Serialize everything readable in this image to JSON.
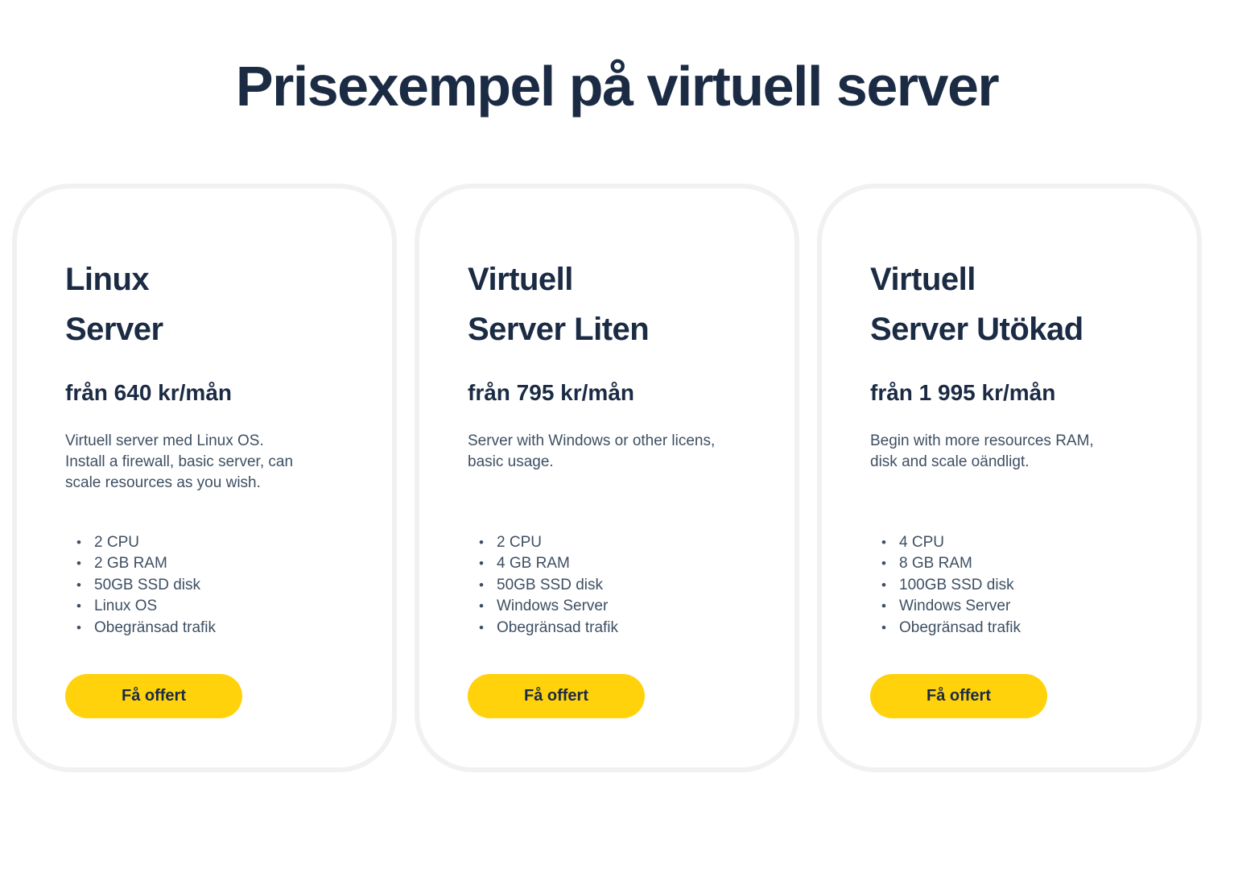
{
  "page": {
    "title": "Prisexempel på virtuell server"
  },
  "colors": {
    "heading": "#1b2b44",
    "body_text": "#3e4f63",
    "button_bg": "#ffd20b",
    "card_border": "#f1f1f2"
  },
  "cards": [
    {
      "name": "Linux\nServer",
      "price": "från 640 kr/mån",
      "description": "Virtuell server med Linux OS.\nInstall a firewall, basic server, can\nscale resources as you wish.",
      "features": [
        "2 CPU",
        "2 GB RAM",
        "50GB SSD disk",
        "Linux OS",
        "Obegränsad trafik"
      ],
      "cta_label": "Få offert"
    },
    {
      "name": "Virtuell\nServer Liten",
      "price": "från 795 kr/mån",
      "description": "Server with Windows or other licens,\nbasic usage.",
      "features": [
        "2 CPU",
        "4 GB RAM",
        "50GB SSD disk",
        "Windows Server",
        "Obegränsad trafik"
      ],
      "cta_label": "Få offert"
    },
    {
      "name": "Virtuell\nServer Utökad",
      "price": "från 1 995 kr/mån",
      "description": "Begin with more resources RAM,\ndisk and scale oändligt.",
      "features": [
        "4 CPU",
        "8 GB RAM",
        "100GB SSD disk",
        "Windows Server",
        "Obegränsad trafik"
      ],
      "cta_label": "Få offert"
    }
  ]
}
